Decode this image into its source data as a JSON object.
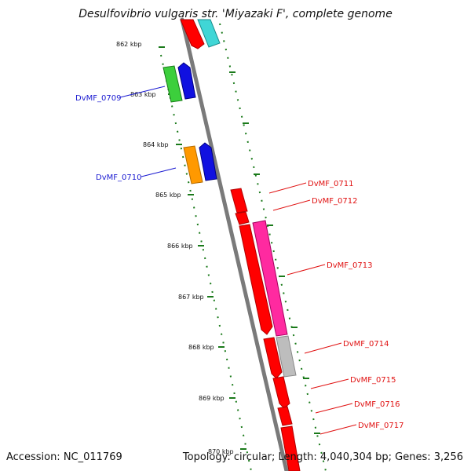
{
  "title": "Desulfovibrio vulgaris str. 'Miyazaki F', complete genome",
  "footer": {
    "accession": "Accession: NC_011769",
    "stats": "Topology: circular; Length: 4,040,304 bp; Genes: 3,256"
  },
  "kbp_ticks": [
    "862 kbp",
    "863 kbp",
    "864 kbp",
    "865 kbp",
    "866 kbp",
    "867 kbp",
    "868 kbp",
    "869 kbp",
    "870 kbp"
  ],
  "gene_labels_left": [
    "DvMF_0709",
    "DvMF_0710"
  ],
  "gene_labels_right": [
    "DvMF_0711",
    "DvMF_0712",
    "DvMF_0713",
    "DvMF_0714",
    "DvMF_0715",
    "DvMF_0716",
    "DvMF_0717"
  ],
  "colors": {
    "backbone": "#7a7a7a",
    "red": "#ff0000",
    "cyan": "#40d6d6",
    "green": "#3ccf3c",
    "blue": "#1010e0",
    "orange": "#ff9900",
    "magenta": "#ff2aa0",
    "gray": "#bdbdbd",
    "tick_green": "#1a7a1a",
    "label_blue": "#1a1ad1",
    "label_red": "#e01010"
  }
}
